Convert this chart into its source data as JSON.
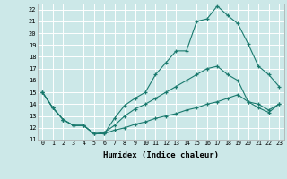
{
  "xlabel": "Humidex (Indice chaleur)",
  "bg_color": "#cce8e8",
  "grid_color": "#ffffff",
  "line_color": "#1a7a6e",
  "xlim": [
    -0.5,
    23.5
  ],
  "ylim": [
    11,
    22.5
  ],
  "xticks": [
    0,
    1,
    2,
    3,
    4,
    5,
    6,
    7,
    8,
    9,
    10,
    11,
    12,
    13,
    14,
    15,
    16,
    17,
    18,
    19,
    20,
    21,
    22,
    23
  ],
  "yticks": [
    11,
    12,
    13,
    14,
    15,
    16,
    17,
    18,
    19,
    20,
    21,
    22
  ],
  "line1_x": [
    0,
    1,
    2,
    3,
    4,
    5,
    6,
    7,
    8,
    9,
    10,
    11,
    12,
    13,
    14,
    15,
    16,
    17,
    18,
    19,
    20,
    21,
    22,
    23
  ],
  "line1_y": [
    15.0,
    13.7,
    12.7,
    12.2,
    12.2,
    11.5,
    11.5,
    12.8,
    13.9,
    14.5,
    15.0,
    16.5,
    17.5,
    18.5,
    18.5,
    21.0,
    21.2,
    22.3,
    21.5,
    20.8,
    19.1,
    17.2,
    16.5,
    15.5
  ],
  "line2_x": [
    0,
    1,
    2,
    3,
    4,
    5,
    6,
    7,
    8,
    9,
    10,
    11,
    12,
    13,
    14,
    15,
    16,
    17,
    18,
    19,
    20,
    21,
    22,
    23
  ],
  "line2_y": [
    15.0,
    13.7,
    12.7,
    12.2,
    12.2,
    11.5,
    11.6,
    12.2,
    13.0,
    13.6,
    14.0,
    14.5,
    15.0,
    15.5,
    16.0,
    16.5,
    17.0,
    17.2,
    16.5,
    16.0,
    14.2,
    13.7,
    13.3,
    14.0
  ],
  "line3_x": [
    0,
    1,
    2,
    3,
    4,
    5,
    6,
    7,
    8,
    9,
    10,
    11,
    12,
    13,
    14,
    15,
    16,
    17,
    18,
    19,
    20,
    21,
    22,
    23
  ],
  "line3_y": [
    15.0,
    13.7,
    12.7,
    12.2,
    12.2,
    11.5,
    11.5,
    11.8,
    12.0,
    12.3,
    12.5,
    12.8,
    13.0,
    13.2,
    13.5,
    13.7,
    14.0,
    14.2,
    14.5,
    14.8,
    14.2,
    14.0,
    13.5,
    14.0
  ],
  "fig_width": 3.2,
  "fig_height": 2.0,
  "dpi": 100
}
